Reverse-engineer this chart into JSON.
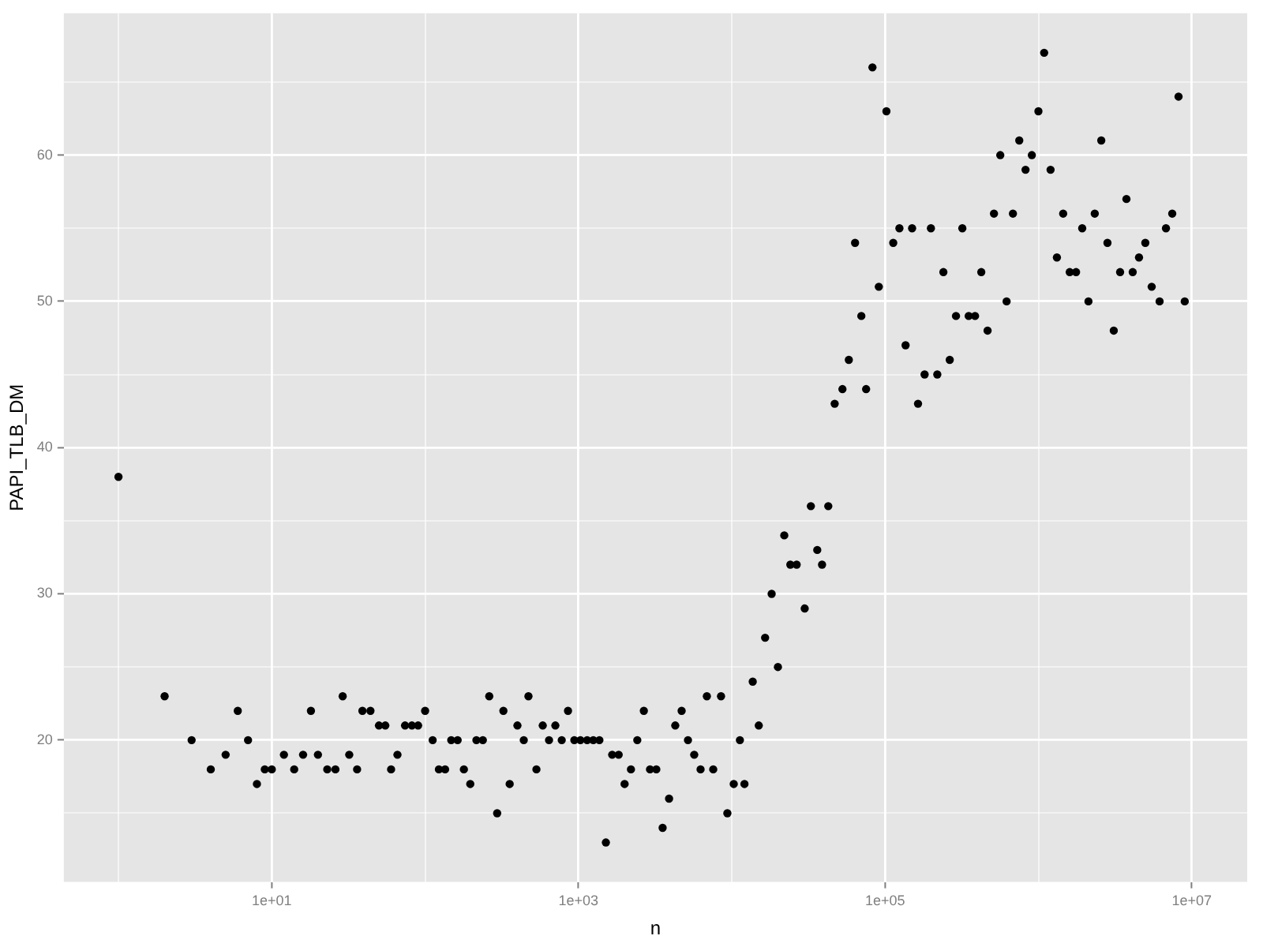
{
  "chart_data": {
    "type": "scatter",
    "xlabel": "n",
    "ylabel": "PAPI_TLB_DM",
    "log": "x",
    "grid": true,
    "legend": false,
    "marker": "circle",
    "xlim": [
      0.44,
      23000000
    ],
    "xticks": [
      {
        "value": 1,
        "label": null
      },
      {
        "value": 10,
        "label": "1e+01"
      },
      {
        "value": 100,
        "label": null
      },
      {
        "value": 1000,
        "label": "1e+03"
      },
      {
        "value": 10000,
        "label": null
      },
      {
        "value": 100000,
        "label": "1e+05"
      },
      {
        "value": 1000000,
        "label": null
      },
      {
        "value": 10000000,
        "label": "1e+07"
      }
    ],
    "ylim": [
      10.3,
      69.7
    ],
    "yticks": [
      {
        "value": 15,
        "label": null
      },
      20,
      {
        "value": 25,
        "label": null
      },
      30,
      {
        "value": 35,
        "label": null
      },
      40,
      {
        "value": 45,
        "label": null
      },
      50,
      {
        "value": 55,
        "label": null
      },
      60,
      {
        "value": 65,
        "label": null
      }
    ],
    "series": [
      {
        "color": "#000000",
        "x": [
          1,
          2,
          3,
          4,
          5,
          6,
          7,
          8,
          9,
          10,
          12,
          14,
          16,
          18,
          20,
          23,
          26,
          29,
          32,
          36,
          39,
          44,
          50,
          55,
          60,
          66,
          74,
          82,
          90,
          100,
          112,
          123,
          135,
          148,
          163,
          179,
          197,
          216,
          238,
          262,
          295,
          324,
          356,
          400,
          440,
          472,
          532,
          585,
          643,
          707,
          778,
          855,
          940,
          1030,
          1140,
          1250,
          1370,
          1510,
          1660,
          1830,
          2000,
          2200,
          2420,
          2670,
          2930,
          3220,
          3540,
          3900,
          4280,
          4710,
          5180,
          5690,
          6260,
          6880,
          7570,
          8510,
          9360,
          10300,
          11300,
          12100,
          13700,
          15000,
          16500,
          18200,
          20000,
          22000,
          24100,
          26500,
          29900,
          32800,
          36100,
          38800,
          42600,
          46900,
          52700,
          58000,
          63700,
          70000,
          75200,
          82700,
          91000,
          102000,
          113000,
          124000,
          136000,
          150000,
          164000,
          181000,
          199000,
          219000,
          240000,
          264000,
          290000,
          319000,
          351000,
          386000,
          424000,
          466000,
          513000,
          564000,
          620000,
          682000,
          750000,
          824000,
          906000,
          1000000,
          1090000,
          1200000,
          1320000,
          1450000,
          1600000,
          1760000,
          1930000,
          2120000,
          2330000,
          2570000,
          2820000,
          3100000,
          3410000,
          3750000,
          4120000,
          4530000,
          4980000,
          5480000,
          6170000,
          6790000,
          7460000,
          8200000,
          9000000
        ],
        "values": [
          38,
          23,
          20,
          18,
          19,
          22,
          20,
          17,
          18,
          18,
          19,
          18,
          19,
          22,
          19,
          18,
          18,
          23,
          19,
          18,
          22,
          22,
          21,
          21,
          18,
          19,
          21,
          21,
          21,
          22,
          20,
          18,
          18,
          20,
          20,
          18,
          17,
          20,
          20,
          23,
          15,
          22,
          17,
          21,
          20,
          23,
          18,
          21,
          20,
          21,
          20,
          22,
          20,
          20,
          20,
          20,
          20,
          13,
          19,
          19,
          17,
          18,
          20,
          22,
          18,
          18,
          14,
          16,
          21,
          22,
          20,
          19,
          18,
          23,
          18,
          23,
          15,
          17,
          20,
          17,
          24,
          21,
          27,
          30,
          25,
          34,
          32,
          32,
          29,
          36,
          33,
          32,
          36,
          43,
          44,
          46,
          54,
          49,
          44,
          66,
          51,
          63,
          54,
          55,
          47,
          55,
          43,
          45,
          55,
          45,
          52,
          46,
          49,
          55,
          49,
          49,
          52,
          48,
          56,
          60,
          50,
          56,
          61,
          59,
          60,
          63,
          67,
          59,
          53,
          56,
          52,
          52,
          55,
          50,
          56,
          61,
          54,
          48,
          52,
          57,
          52,
          53,
          54,
          51,
          50,
          55,
          56,
          64,
          50
        ]
      }
    ]
  }
}
